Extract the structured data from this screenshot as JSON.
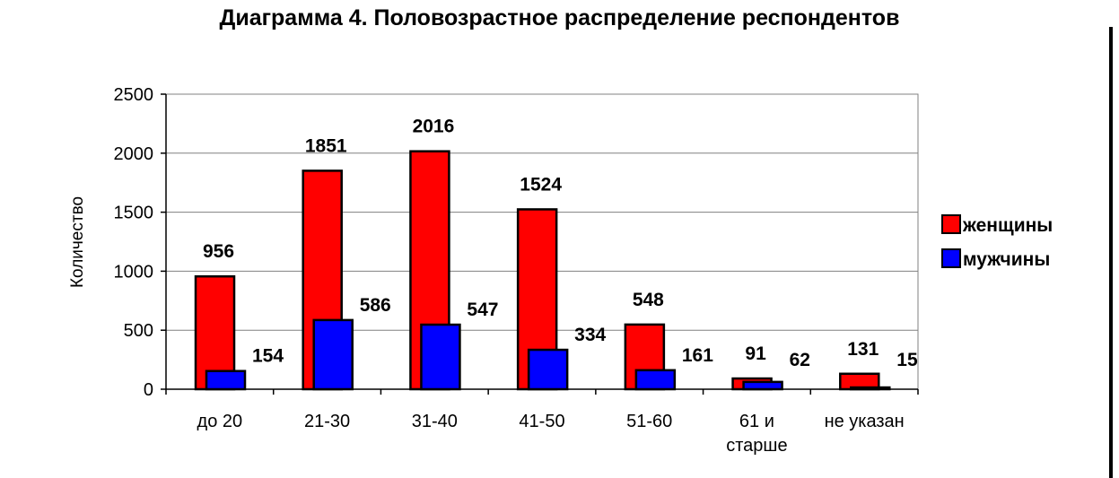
{
  "chart_data": {
    "type": "bar",
    "title": "Диаграмма 4. Половозрастное распределение респондентов",
    "ylabel": "Количество",
    "xlabel": "",
    "categories": [
      "до 20",
      "21-30",
      "31-40",
      "41-50",
      "51-60",
      "61 и\nстарше",
      "не указан"
    ],
    "series": [
      {
        "name": "женщины",
        "values": [
          956,
          1851,
          2016,
          1524,
          548,
          91,
          131
        ],
        "color": "#ff0000"
      },
      {
        "name": "мужчины",
        "values": [
          154,
          586,
          547,
          334,
          161,
          62,
          15
        ],
        "color": "#0000ff"
      }
    ],
    "ylim": [
      0,
      2500
    ],
    "yticks": [
      0,
      500,
      1000,
      1500,
      2000,
      2500
    ],
    "grid": true,
    "legend_position": "right",
    "plot_background": "#ffffff",
    "gridline_color": "#808080"
  }
}
